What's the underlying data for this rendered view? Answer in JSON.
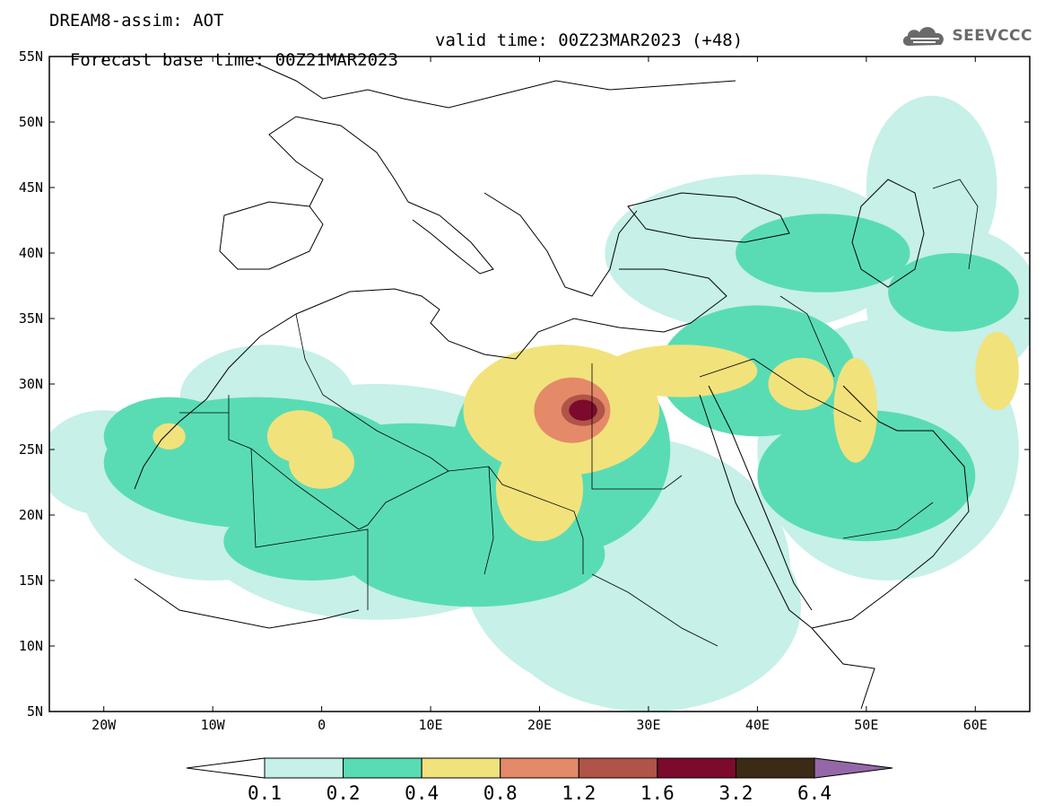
{
  "header": {
    "line1": "DREAM8-assim: AOT",
    "base_time": "Forecast base time: 00Z21MAR2023",
    "valid_time": "valid time: 00Z23MAR2023 (+48)"
  },
  "logo": {
    "text": "SEEVCCC",
    "icon": "cloud-icon"
  },
  "map": {
    "projection": "lat-lon",
    "extent": {
      "lon_min": -25,
      "lon_max": 65,
      "lat_min": 5,
      "lat_max": 55
    },
    "lat_ticks": [
      {
        "lat": 55,
        "label": "55N"
      },
      {
        "lat": 50,
        "label": "50N"
      },
      {
        "lat": 45,
        "label": "45N"
      },
      {
        "lat": 40,
        "label": "40N"
      },
      {
        "lat": 35,
        "label": "35N"
      },
      {
        "lat": 30,
        "label": "30N"
      },
      {
        "lat": 25,
        "label": "25N"
      },
      {
        "lat": 20,
        "label": "20N"
      },
      {
        "lat": 15,
        "label": "15N"
      },
      {
        "lat": 10,
        "label": "10N"
      },
      {
        "lat": 5,
        "label": "5N"
      }
    ],
    "lon_ticks": [
      {
        "lon": -20,
        "label": "20W"
      },
      {
        "lon": -10,
        "label": "10W"
      },
      {
        "lon": 0,
        "label": "0"
      },
      {
        "lon": 10,
        "label": "10E"
      },
      {
        "lon": 20,
        "label": "20E"
      },
      {
        "lon": 30,
        "label": "30E"
      },
      {
        "lon": 40,
        "label": "40E"
      },
      {
        "lon": 50,
        "label": "50E"
      },
      {
        "lon": 60,
        "label": "60E"
      }
    ],
    "dust_field": [
      {
        "level": 1,
        "blobs": [
          [
            -10,
            22,
            12,
            7
          ],
          [
            5,
            21,
            18,
            9
          ],
          [
            28,
            16,
            15,
            10
          ],
          [
            52,
            25,
            12,
            10
          ],
          [
            40,
            40,
            14,
            6
          ],
          [
            58,
            36,
            8,
            6
          ],
          [
            -5,
            29,
            8,
            4
          ],
          [
            30,
            13,
            14,
            8
          ],
          [
            -20,
            24,
            6,
            4
          ],
          [
            56,
            45,
            6,
            7
          ]
        ]
      },
      {
        "level": 2,
        "blobs": [
          [
            -6,
            24,
            14,
            5
          ],
          [
            8,
            21,
            14,
            6
          ],
          [
            14,
            17,
            12,
            4
          ],
          [
            22,
            25,
            10,
            8
          ],
          [
            40,
            31,
            9,
            5
          ],
          [
            50,
            23,
            10,
            5
          ],
          [
            46,
            40,
            8,
            3
          ],
          [
            58,
            37,
            6,
            3
          ],
          [
            -14,
            26,
            6,
            3
          ],
          [
            -1,
            18,
            8,
            3
          ]
        ]
      },
      {
        "level": 3,
        "blobs": [
          [
            22,
            28,
            9,
            5
          ],
          [
            20,
            22,
            4,
            4
          ],
          [
            -2,
            26,
            3,
            2
          ],
          [
            0,
            24,
            3,
            2
          ],
          [
            33,
            31,
            7,
            2
          ],
          [
            44,
            30,
            3,
            2
          ],
          [
            49,
            28,
            2,
            4
          ],
          [
            62,
            31,
            2,
            3
          ],
          [
            -14,
            26,
            1.5,
            1
          ]
        ]
      },
      {
        "level": 4,
        "blobs": [
          [
            23,
            28,
            3.5,
            2.5
          ]
        ]
      },
      {
        "level": 5,
        "blobs": [
          [
            24,
            28,
            2,
            1.2
          ]
        ]
      },
      {
        "level": 6,
        "blobs": [
          [
            24,
            28,
            1.3,
            0.8
          ]
        ]
      }
    ]
  },
  "colorbar": {
    "labels": [
      "0.1",
      "0.2",
      "0.4",
      "0.8",
      "1.2",
      "1.6",
      "3.2",
      "6.4"
    ],
    "colors": [
      "#c6f0e8",
      "#59dcb4",
      "#f2e27c",
      "#e48a68",
      "#b05448",
      "#7c0a2c",
      "#3c2a16"
    ],
    "under_color": "#ffffff",
    "over_color": "#9468a8"
  }
}
